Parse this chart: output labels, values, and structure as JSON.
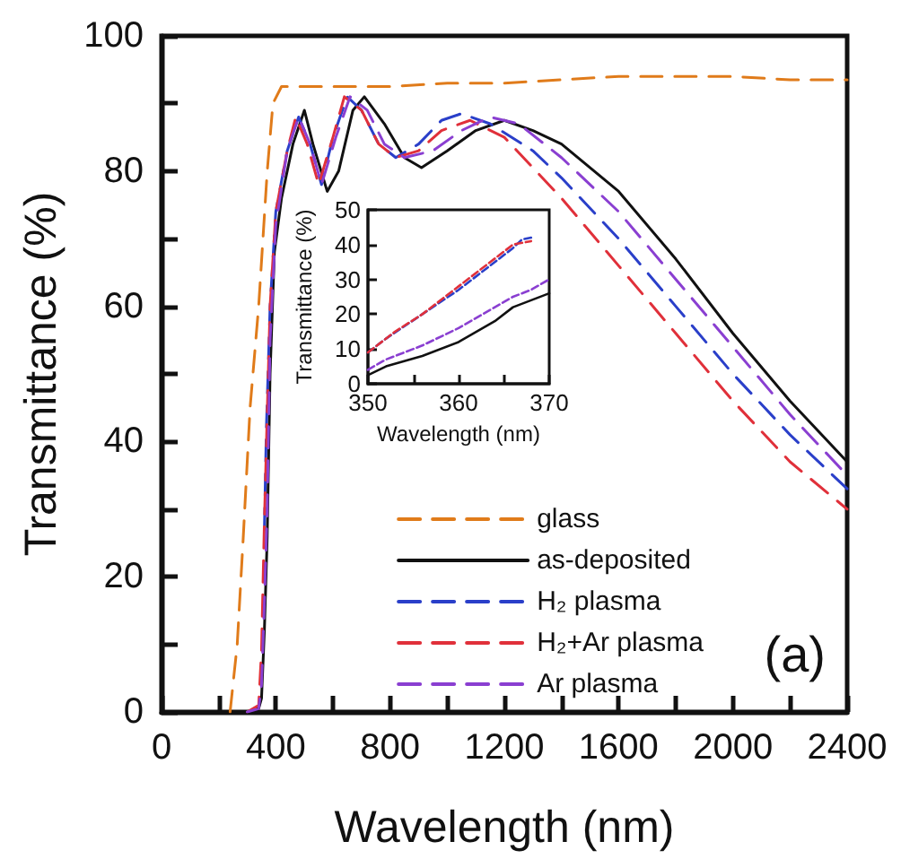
{
  "chart_data": [
    {
      "type": "line",
      "xlabel": "Wavelength (nm)",
      "ylabel": "Transmittance (%)",
      "xlim": [
        0,
        2400
      ],
      "ylim": [
        0,
        100
      ],
      "xticks": [
        0,
        {
          "value": 200,
          "label": null
        },
        400,
        {
          "value": 600,
          "label": null
        },
        800,
        {
          "value": 1000,
          "label": null
        },
        1200,
        {
          "value": 1400,
          "label": null
        },
        1600,
        {
          "value": 1800,
          "label": null
        },
        2000,
        {
          "value": 2200,
          "label": null
        },
        2400
      ],
      "yticks": [
        0,
        {
          "value": 10,
          "label": null
        },
        20,
        {
          "value": 30,
          "label": null
        },
        40,
        {
          "value": 50,
          "label": null
        },
        60,
        {
          "value": 70,
          "label": null
        },
        80,
        {
          "value": 90,
          "label": null
        },
        100
      ],
      "grid": false,
      "legend": "bottom right",
      "marker": "none",
      "annotations": [
        "(a)"
      ],
      "series": [
        {
          "name": "glass",
          "color": "#e07b1a",
          "line_style": "dashed",
          "x": [
            240,
            265,
            285,
            310,
            340,
            370,
            390,
            420,
            600,
            800,
            1000,
            1200,
            1400,
            1600,
            1800,
            2000,
            2200,
            2400
          ],
          "values": [
            0,
            10,
            25,
            45,
            60,
            80,
            90,
            92.5,
            92.5,
            92.5,
            93,
            93,
            93.5,
            94,
            94,
            94,
            93.5,
            93.5
          ]
        },
        {
          "name": "as-deposited",
          "color": "#111111",
          "line_style": "solid",
          "x": [
            300,
            340,
            350,
            360,
            370,
            380,
            395,
            420,
            460,
            500,
            530,
            580,
            620,
            670,
            710,
            780,
            850,
            910,
            1000,
            1100,
            1200,
            1300,
            1400,
            1600,
            1800,
            2000,
            2200,
            2400
          ],
          "values": [
            0,
            0.5,
            2,
            12,
            26,
            50,
            68,
            76,
            84,
            89,
            84,
            77,
            80,
            89,
            91,
            87,
            82,
            80.5,
            83,
            86,
            87.5,
            86,
            84,
            77,
            67,
            56,
            46,
            37
          ]
        },
        {
          "name": "H₂ plasma",
          "color": "#2a3fc9",
          "line_style": "dashed",
          "x": [
            360,
            367,
            380,
            400,
            440,
            480,
            520,
            560,
            600,
            650,
            700,
            760,
            820,
            900,
            980,
            1050,
            1150,
            1300,
            1400,
            1600,
            1800,
            2000,
            2200,
            2400
          ],
          "values": [
            27,
            42,
            60,
            74,
            83,
            88,
            84,
            78,
            85,
            91,
            89,
            84,
            82,
            84,
            87.5,
            88.5,
            87,
            83,
            79,
            70,
            60,
            50,
            41,
            33
          ]
        },
        {
          "name": "H₂+Ar plasma",
          "color": "#e0303a",
          "line_style": "dashed",
          "x": [
            300,
            340,
            350,
            360,
            368,
            380,
            400,
            440,
            470,
            510,
            550,
            600,
            640,
            700,
            760,
            820,
            900,
            980,
            1080,
            1200,
            1400,
            1600,
            1800,
            2000,
            2200,
            2400
          ],
          "values": [
            0,
            1,
            9,
            28,
            41,
            60,
            74,
            83,
            88,
            84,
            78,
            85,
            91,
            89,
            84,
            82,
            83,
            86,
            87.5,
            85,
            76,
            66,
            56,
            46,
            37,
            30
          ]
        },
        {
          "name": "Ar plasma",
          "color": "#8a3fd1",
          "line_style": "dashed",
          "x": [
            300,
            340,
            350,
            360,
            370,
            380,
            400,
            440,
            480,
            520,
            560,
            610,
            660,
            720,
            780,
            850,
            950,
            1050,
            1150,
            1250,
            1400,
            1600,
            1800,
            2000,
            2200,
            2400
          ],
          "values": [
            0,
            0.5,
            4,
            16,
            30,
            55,
            72,
            83,
            88,
            84,
            78,
            85,
            91,
            89,
            84,
            82,
            83,
            86,
            88,
            87,
            82,
            74,
            64,
            54,
            44,
            35
          ]
        }
      ]
    },
    {
      "type": "line",
      "xlabel": "Wavelength (nm)",
      "ylabel": "Transmittance (%)",
      "xlim": [
        350,
        370
      ],
      "ylim": [
        0,
        50
      ],
      "xticks": [
        350,
        {
          "value": 355,
          "label": null
        },
        360,
        {
          "value": 365,
          "label": null
        },
        370
      ],
      "yticks": [
        0,
        10,
        20,
        30,
        40,
        50
      ],
      "grid": false,
      "marker": "none",
      "series": [
        {
          "color": "#111111",
          "line_style": "solid",
          "x": [
            350,
            352,
            356,
            360,
            364,
            366,
            368,
            370
          ],
          "values": [
            2.5,
            5,
            8,
            12,
            18,
            22,
            24,
            26
          ]
        },
        {
          "color": "#2a3fc9",
          "line_style": "dashed",
          "x": [
            350,
            352,
            356,
            360,
            364,
            366,
            367,
            368
          ],
          "values": [
            9,
            13,
            20,
            27,
            35,
            39,
            41.5,
            42
          ]
        },
        {
          "color": "#e0303a",
          "line_style": "dashed",
          "x": [
            350,
            353,
            356,
            360,
            364,
            366,
            368
          ],
          "values": [
            9,
            15,
            20,
            28,
            36,
            40,
            41
          ]
        },
        {
          "color": "#8a3fd1",
          "line_style": "dashed",
          "x": [
            350,
            352,
            356,
            360,
            364,
            366,
            368,
            370
          ],
          "values": [
            4,
            7,
            11,
            16,
            22,
            25,
            27,
            30
          ]
        }
      ]
    }
  ]
}
